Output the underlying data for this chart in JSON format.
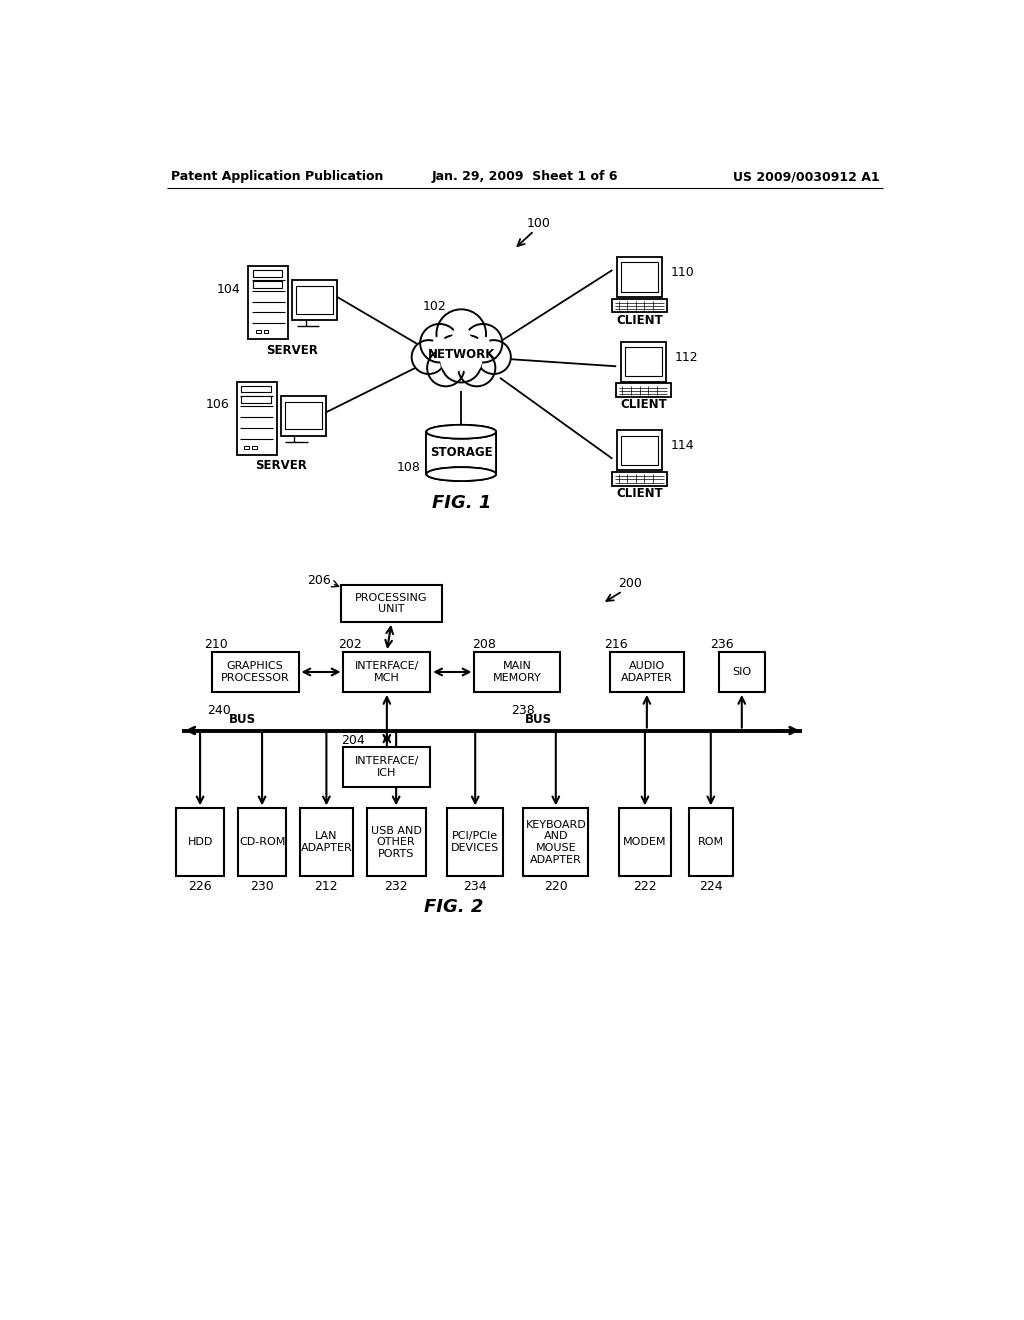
{
  "header_left": "Patent Application Publication",
  "header_mid": "Jan. 29, 2009  Sheet 1 of 6",
  "header_right": "US 2009/0030912 A1",
  "fig1_label": "FIG. 1",
  "fig2_label": "FIG. 2",
  "bg_color": "#ffffff",
  "line_color": "#000000"
}
